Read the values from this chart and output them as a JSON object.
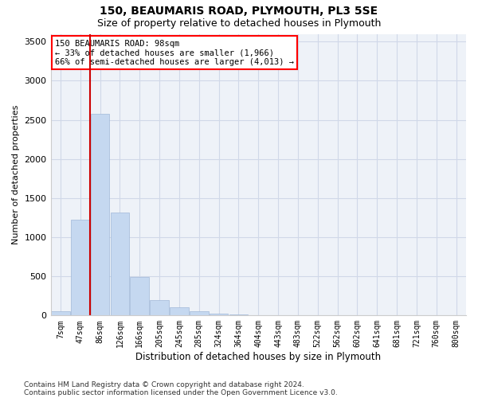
{
  "title1": "150, BEAUMARIS ROAD, PLYMOUTH, PL3 5SE",
  "title2": "Size of property relative to detached houses in Plymouth",
  "xlabel": "Distribution of detached houses by size in Plymouth",
  "ylabel": "Number of detached properties",
  "bar_color": "#c5d8f0",
  "bar_edgecolor": "#a0b8d8",
  "grid_color": "#d0d8e8",
  "background_color": "#eef2f8",
  "vline_color": "#cc0000",
  "vline_x_index": 2,
  "annotation_text": "150 BEAUMARIS ROAD: 98sqm\n← 33% of detached houses are smaller (1,966)\n66% of semi-detached houses are larger (4,013) →",
  "categories": [
    "7sqm",
    "47sqm",
    "86sqm",
    "126sqm",
    "166sqm",
    "205sqm",
    "245sqm",
    "285sqm",
    "324sqm",
    "364sqm",
    "404sqm",
    "443sqm",
    "483sqm",
    "522sqm",
    "562sqm",
    "602sqm",
    "641sqm",
    "681sqm",
    "721sqm",
    "760sqm",
    "800sqm"
  ],
  "values": [
    50,
    1220,
    2580,
    1320,
    490,
    195,
    110,
    55,
    28,
    12,
    3,
    2,
    1,
    0,
    0,
    0,
    0,
    0,
    0,
    0,
    0
  ],
  "ylim": [
    0,
    3600
  ],
  "yticks": [
    0,
    500,
    1000,
    1500,
    2000,
    2500,
    3000,
    3500
  ],
  "footer1": "Contains HM Land Registry data © Crown copyright and database right 2024.",
  "footer2": "Contains public sector information licensed under the Open Government Licence v3.0."
}
